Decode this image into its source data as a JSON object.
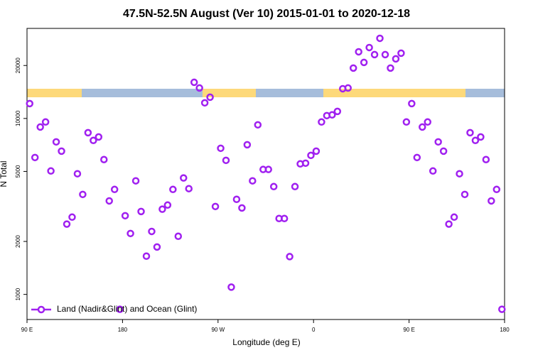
{
  "chart_data": {
    "type": "scatter",
    "title": "47.5N-52.5N August (Ver 10)   2015-01-01 to 2020-12-18",
    "x_label": "Longitude (deg E)",
    "y_label": "N Total",
    "log_y": true,
    "legend": "bottom left",
    "xlim": [
      90,
      540
    ],
    "xticks": [
      {
        "value": 90,
        "label": "90 E"
      },
      180,
      {
        "value": 270,
        "label": "90 W"
      },
      {
        "value": 360,
        "label": "0"
      },
      {
        "value": 450,
        "label": "90 E"
      },
      {
        "value": 540,
        "label": "180"
      }
    ],
    "ylim": [
      720,
      32500
    ],
    "yticks": [
      1000,
      2000,
      5000,
      10000,
      20000
    ],
    "series": [
      {
        "name": "Land (Nadir&Glint) and Ocean (Glint)",
        "color": "#a020f0",
        "x": [
          92.5,
          97.5,
          102.5,
          107.5,
          112.5,
          117.5,
          122.5,
          127.5,
          132.5,
          137.5,
          142.5,
          147.5,
          152.5,
          157.5,
          162.5,
          167.5,
          172.5,
          177.5,
          182.5,
          187.5,
          192.5,
          197.5,
          202.5,
          207.5,
          212.5,
          217.5,
          222.5,
          227.5,
          232.5,
          237.5,
          242.5,
          247.5,
          252.5,
          257.5,
          262.5,
          267.5,
          272.5,
          277.5,
          282.5,
          287.5,
          292.5,
          297.5,
          302.5,
          307.5,
          312.5,
          317.5,
          322.5,
          327.5,
          332.5,
          337.5,
          342.5,
          347.5,
          352.5,
          357.5,
          362.5,
          367.5,
          372.5,
          377.5,
          382.5,
          387.5,
          392.5,
          397.5,
          402.5,
          407.5,
          412.5,
          417.5,
          422.5,
          427.5,
          432.5,
          437.5,
          442.5,
          447.5,
          452.5,
          457.5,
          462.5,
          467.5,
          472.5,
          477.5,
          482.5,
          487.5,
          492.5,
          497.5,
          502.5,
          507.5,
          512.5,
          517.5,
          522.5,
          527.5,
          532.5,
          537.5
        ],
        "values": [
          12150,
          6000,
          8940,
          9550,
          5030,
          7360,
          6520,
          2510,
          2750,
          4850,
          3700,
          8300,
          7500,
          7850,
          5840,
          3400,
          3950,
          823,
          2800,
          2220,
          4420,
          2960,
          1650,
          2280,
          1860,
          3050,
          3220,
          3950,
          2140,
          4590,
          3990,
          16050,
          14900,
          12270,
          13210,
          3160,
          6770,
          5780,
          1100,
          3470,
          3100,
          7090,
          4420,
          9200,
          5130,
          5130,
          4100,
          2700,
          2700,
          1640,
          4100,
          5520,
          5570,
          6170,
          6520,
          9550,
          10380,
          10480,
          10970,
          14760,
          14900,
          19340,
          23930,
          20820,
          25300,
          23060,
          28550,
          23060,
          19340,
          21820,
          23500,
          9550,
          12150,
          6000,
          8940,
          9550,
          5030,
          7360,
          6520,
          2510,
          2750,
          4850,
          3700,
          8300,
          7500,
          7850,
          5840,
          3400,
          3950,
          823
        ]
      }
    ]
  }
}
